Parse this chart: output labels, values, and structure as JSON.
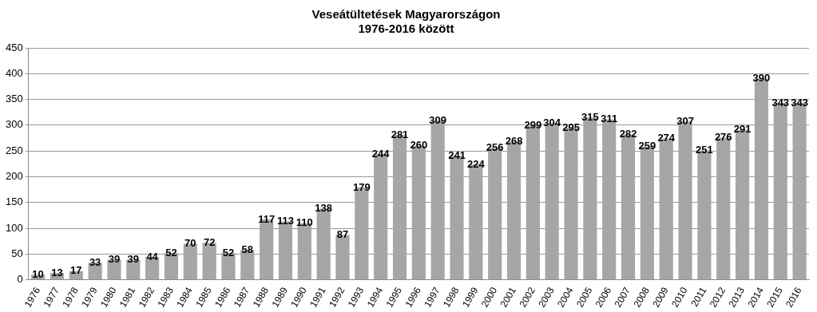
{
  "chart_data": {
    "type": "bar",
    "title": "Veseátültetések Magyarországon\n1976-2016 között",
    "categories": [
      "1976",
      "1977",
      "1978",
      "1979",
      "1980",
      "1981",
      "1982",
      "1983",
      "1984",
      "1985",
      "1986",
      "1987",
      "1988",
      "1989",
      "1990",
      "1991",
      "1992",
      "1993",
      "1994",
      "1995",
      "1996",
      "1997",
      "1998",
      "1999",
      "2000",
      "2001",
      "2002",
      "2003",
      "2004",
      "2005",
      "2006",
      "2007",
      "2008",
      "2009",
      "2010",
      "2011",
      "2012",
      "2013",
      "2014",
      "2015",
      "2016"
    ],
    "values": [
      10,
      13,
      17,
      33,
      39,
      39,
      44,
      52,
      70,
      72,
      52,
      58,
      117,
      113,
      110,
      138,
      87,
      179,
      244,
      281,
      260,
      309,
      241,
      224,
      256,
      268,
      299,
      304,
      295,
      315,
      311,
      282,
      259,
      274,
      307,
      251,
      276,
      291,
      390,
      343,
      343
    ],
    "color": "#a6a6a6",
    "ylim": [
      0,
      450
    ],
    "yticks": [
      0,
      50,
      100,
      150,
      200,
      250,
      300,
      350,
      400,
      450
    ],
    "grid": "y",
    "data_labels": true
  }
}
